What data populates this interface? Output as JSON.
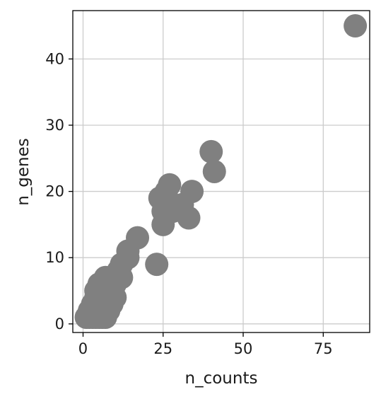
{
  "chart_data": {
    "type": "scatter",
    "title": "",
    "xlabel": "n_counts",
    "ylabel": "n_genes",
    "xlim": [
      -3.2,
      89.5
    ],
    "ylim": [
      -1.3,
      47.3
    ],
    "xticks": [
      0,
      25,
      50,
      75
    ],
    "yticks": [
      0,
      10,
      20,
      30,
      40
    ],
    "grid": true,
    "legend": "none",
    "point_color": "#808080",
    "points": [
      {
        "x": 1,
        "y": 1
      },
      {
        "x": 2,
        "y": 1
      },
      {
        "x": 3,
        "y": 1
      },
      {
        "x": 4,
        "y": 1
      },
      {
        "x": 5,
        "y": 1
      },
      {
        "x": 6,
        "y": 1
      },
      {
        "x": 7,
        "y": 1
      },
      {
        "x": 2,
        "y": 2
      },
      {
        "x": 3,
        "y": 2
      },
      {
        "x": 4,
        "y": 2
      },
      {
        "x": 5,
        "y": 2
      },
      {
        "x": 6,
        "y": 2
      },
      {
        "x": 7,
        "y": 2
      },
      {
        "x": 8,
        "y": 2
      },
      {
        "x": 3,
        "y": 3
      },
      {
        "x": 4,
        "y": 3
      },
      {
        "x": 5,
        "y": 3
      },
      {
        "x": 6,
        "y": 3
      },
      {
        "x": 7,
        "y": 3
      },
      {
        "x": 9,
        "y": 3
      },
      {
        "x": 4,
        "y": 4
      },
      {
        "x": 5,
        "y": 4
      },
      {
        "x": 6,
        "y": 4
      },
      {
        "x": 8,
        "y": 4
      },
      {
        "x": 10,
        "y": 4
      },
      {
        "x": 4,
        "y": 5
      },
      {
        "x": 5,
        "y": 5
      },
      {
        "x": 6,
        "y": 5
      },
      {
        "x": 7,
        "y": 5
      },
      {
        "x": 9,
        "y": 5
      },
      {
        "x": 5,
        "y": 6
      },
      {
        "x": 6,
        "y": 6
      },
      {
        "x": 8,
        "y": 6
      },
      {
        "x": 10,
        "y": 6
      },
      {
        "x": 7,
        "y": 7
      },
      {
        "x": 9,
        "y": 7
      },
      {
        "x": 12,
        "y": 7
      },
      {
        "x": 11,
        "y": 8
      },
      {
        "x": 12,
        "y": 9
      },
      {
        "x": 14,
        "y": 10
      },
      {
        "x": 14,
        "y": 11
      },
      {
        "x": 17,
        "y": 13
      },
      {
        "x": 23,
        "y": 9
      },
      {
        "x": 25,
        "y": 15
      },
      {
        "x": 25,
        "y": 17
      },
      {
        "x": 28,
        "y": 17
      },
      {
        "x": 31,
        "y": 18
      },
      {
        "x": 24,
        "y": 19
      },
      {
        "x": 26,
        "y": 20
      },
      {
        "x": 27,
        "y": 21
      },
      {
        "x": 33,
        "y": 16
      },
      {
        "x": 34,
        "y": 20
      },
      {
        "x": 40,
        "y": 26
      },
      {
        "x": 41,
        "y": 23
      },
      {
        "x": 85,
        "y": 45
      }
    ]
  }
}
